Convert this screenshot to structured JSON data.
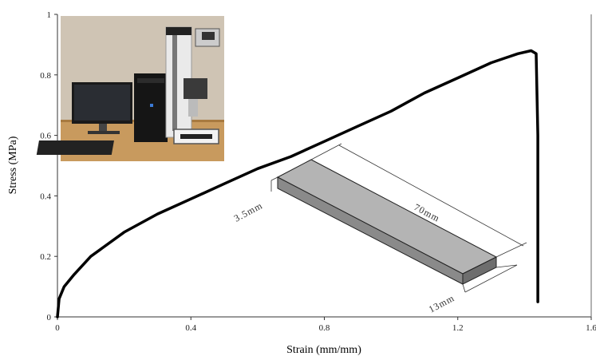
{
  "chart_data": {
    "type": "line",
    "title": "",
    "xlabel": "Strain (mm/mm)",
    "ylabel": "Stress (MPa)",
    "xlim": [
      0,
      1.6
    ],
    "ylim": [
      0,
      1
    ],
    "x_ticks": [
      "0",
      "0.4",
      "0.8",
      "1.2",
      "1.6"
    ],
    "y_ticks": [
      "0",
      "0.2",
      "0.4",
      "0.6",
      "0.8",
      "1"
    ],
    "grid": false,
    "legend": "none",
    "series": [
      {
        "color": "#000000",
        "x": [
          0,
          0.005,
          0.02,
          0.05,
          0.1,
          0.2,
          0.3,
          0.4,
          0.5,
          0.6,
          0.7,
          0.8,
          0.9,
          1.0,
          1.1,
          1.2,
          1.3,
          1.38,
          1.42,
          1.435,
          1.44,
          1.44
        ],
        "y": [
          0,
          0.06,
          0.1,
          0.14,
          0.2,
          0.28,
          0.34,
          0.39,
          0.44,
          0.49,
          0.53,
          0.58,
          0.63,
          0.68,
          0.74,
          0.79,
          0.84,
          0.87,
          0.88,
          0.87,
          0.6,
          0.05
        ]
      }
    ]
  },
  "inset": {
    "kind": "photo",
    "description_icon": "tensile-testing-machine-photo"
  },
  "specimen": {
    "length_label": "70mm",
    "thickness_label": "3.5mm",
    "width_label": "13mm",
    "colors": {
      "top": "#b4b4b4",
      "front": "#8a8a8a",
      "side": "#6e6e6e"
    }
  }
}
